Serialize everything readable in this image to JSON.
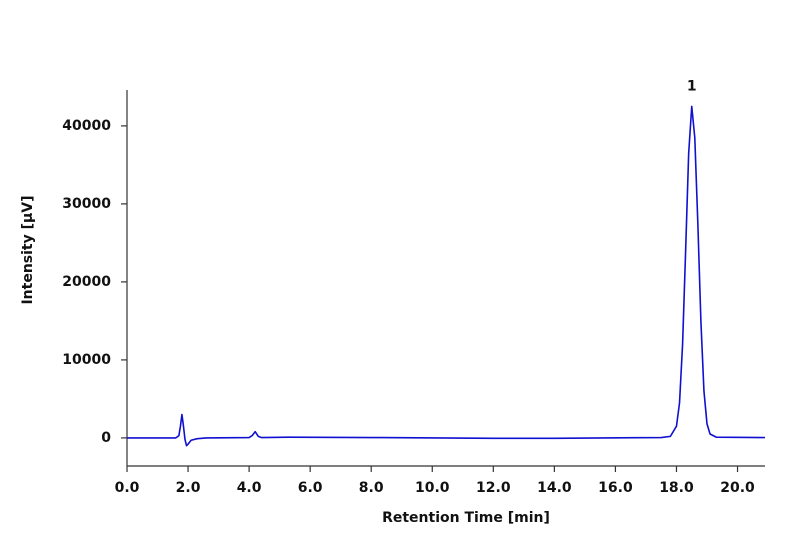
{
  "chart_data": {
    "type": "line",
    "xlabel": "Retention Time [min]",
    "ylabel": "Intensity [µV]",
    "x": [
      0,
      1.6,
      1.7,
      1.75,
      1.8,
      1.85,
      1.9,
      1.95,
      2.0,
      2.1,
      2.3,
      2.6,
      4.0,
      4.1,
      4.2,
      4.3,
      4.4,
      5.3,
      8.0,
      12.0,
      14.0,
      17.5,
      17.8,
      18.0,
      18.1,
      18.2,
      18.3,
      18.4,
      18.5,
      18.6,
      18.7,
      18.8,
      18.9,
      19.0,
      19.1,
      19.3,
      20.9
    ],
    "series": [
      {
        "color": "#1010d0",
        "values": [
          0,
          0,
          300,
          1500,
          3000,
          1500,
          -200,
          -1000,
          -800,
          -300,
          -100,
          0,
          50,
          300,
          800,
          200,
          50,
          100,
          50,
          -50,
          -50,
          50,
          200,
          1500,
          4500,
          12000,
          24000,
          36500,
          42500,
          38500,
          27500,
          15000,
          6000,
          1800,
          500,
          100,
          50
        ]
      }
    ],
    "annotations": [
      {
        "text": "1",
        "x": 18.5,
        "y": 42500
      }
    ],
    "xlim": [
      0,
      20.9
    ],
    "ylim": [
      -3600,
      44600
    ],
    "xticks": [
      {
        "value": 0,
        "label": "0.0"
      },
      {
        "value": 2,
        "label": "2.0"
      },
      {
        "value": 4,
        "label": "4.0"
      },
      {
        "value": 6,
        "label": "6.0"
      },
      {
        "value": 8,
        "label": "8.0"
      },
      {
        "value": 10,
        "label": "10.0"
      },
      {
        "value": 12,
        "label": "12.0"
      },
      {
        "value": 14,
        "label": "14.0"
      },
      {
        "value": 16,
        "label": "16.0"
      },
      {
        "value": 18,
        "label": "18.0"
      },
      {
        "value": 20,
        "label": "20.0"
      }
    ],
    "yticks": [
      0,
      10000,
      20000,
      30000,
      40000
    ]
  }
}
